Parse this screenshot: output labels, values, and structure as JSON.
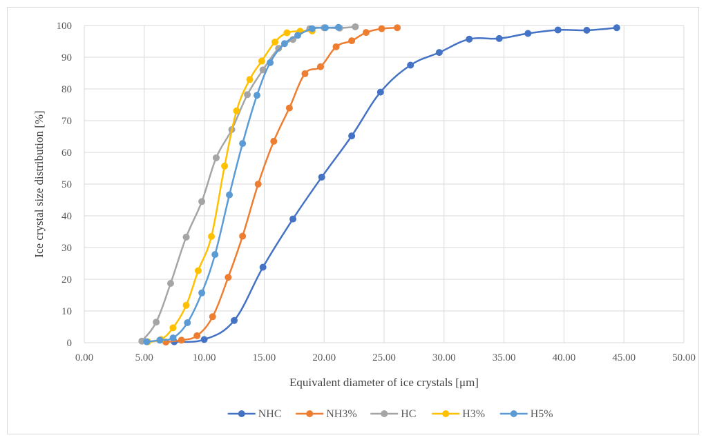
{
  "chart_data": {
    "type": "scatter",
    "title": "",
    "xlabel": "Equivalent diameter of ice crystals [μm]",
    "ylabel": "Ice crystal size distribution [%]",
    "xlim": [
      0,
      50
    ],
    "ylim": [
      0,
      100
    ],
    "x_ticks": [
      "0.00",
      "5.00",
      "10.00",
      "15.00",
      "20.00",
      "25.00",
      "30.00",
      "35.00",
      "40.00",
      "45.00",
      "50.00"
    ],
    "y_ticks": [
      "0",
      "10",
      "20",
      "30",
      "40",
      "50",
      "60",
      "70",
      "80",
      "90",
      "100"
    ],
    "grid": true,
    "legend_position": "bottom",
    "series": [
      {
        "name": "NHC",
        "color": "#4472c4",
        "points": [
          [
            7.5,
            0.3
          ],
          [
            10.0,
            1.0
          ],
          [
            12.5,
            7.0
          ],
          [
            14.9,
            23.8
          ],
          [
            17.4,
            39.0
          ],
          [
            19.8,
            52.2
          ],
          [
            22.3,
            65.2
          ],
          [
            24.7,
            79.0
          ],
          [
            27.2,
            87.5
          ],
          [
            29.6,
            91.5
          ],
          [
            32.1,
            95.7
          ],
          [
            34.6,
            95.9
          ],
          [
            37.0,
            97.5
          ],
          [
            39.5,
            98.6
          ],
          [
            41.9,
            98.5
          ],
          [
            44.4,
            99.3
          ]
        ]
      },
      {
        "name": "NH3%",
        "color": "#ed7d31",
        "points": [
          [
            6.8,
            0.2
          ],
          [
            8.1,
            0.8
          ],
          [
            9.4,
            2.2
          ],
          [
            10.7,
            8.2
          ],
          [
            12.0,
            20.6
          ],
          [
            13.2,
            33.6
          ],
          [
            14.5,
            50.0
          ],
          [
            15.8,
            63.5
          ],
          [
            17.1,
            74.0
          ],
          [
            18.4,
            84.8
          ],
          [
            19.7,
            87.0
          ],
          [
            21.0,
            93.3
          ],
          [
            22.3,
            95.2
          ],
          [
            23.5,
            97.8
          ],
          [
            24.8,
            99.0
          ],
          [
            26.1,
            99.3
          ]
        ]
      },
      {
        "name": "HC",
        "color": "#a5a5a5",
        "points": [
          [
            4.8,
            0.5
          ],
          [
            6.0,
            6.5
          ],
          [
            7.2,
            18.7
          ],
          [
            8.5,
            33.3
          ],
          [
            9.8,
            44.5
          ],
          [
            11.0,
            58.3
          ],
          [
            12.3,
            67.2
          ],
          [
            13.6,
            78.2
          ],
          [
            14.9,
            86.0
          ],
          [
            16.2,
            92.8
          ],
          [
            17.4,
            95.6
          ],
          [
            18.8,
            99.0
          ],
          [
            20.0,
            99.3
          ],
          [
            21.3,
            99.2
          ],
          [
            22.6,
            99.6
          ]
        ]
      },
      {
        "name": "H3%",
        "color": "#ffc000",
        "points": [
          [
            5.3,
            0.3
          ],
          [
            6.4,
            1.0
          ],
          [
            7.4,
            4.7
          ],
          [
            8.5,
            11.8
          ],
          [
            9.5,
            22.7
          ],
          [
            10.6,
            33.5
          ],
          [
            11.7,
            55.7
          ],
          [
            12.7,
            73.1
          ],
          [
            13.8,
            83.0
          ],
          [
            14.8,
            88.8
          ],
          [
            15.9,
            94.8
          ],
          [
            16.9,
            97.7
          ],
          [
            18.0,
            98.2
          ],
          [
            19.0,
            98.3
          ]
        ]
      },
      {
        "name": "H5%",
        "color": "#5b9bd5",
        "points": [
          [
            5.2,
            0.3
          ],
          [
            6.3,
            0.8
          ],
          [
            7.4,
            1.5
          ],
          [
            8.6,
            6.3
          ],
          [
            9.8,
            15.7
          ],
          [
            10.9,
            27.8
          ],
          [
            12.1,
            46.6
          ],
          [
            13.2,
            62.8
          ],
          [
            14.4,
            78.0
          ],
          [
            15.5,
            88.3
          ],
          [
            16.7,
            94.3
          ],
          [
            17.8,
            96.9
          ],
          [
            19.0,
            99.0
          ],
          [
            20.1,
            99.3
          ],
          [
            21.2,
            99.4
          ]
        ]
      }
    ]
  }
}
